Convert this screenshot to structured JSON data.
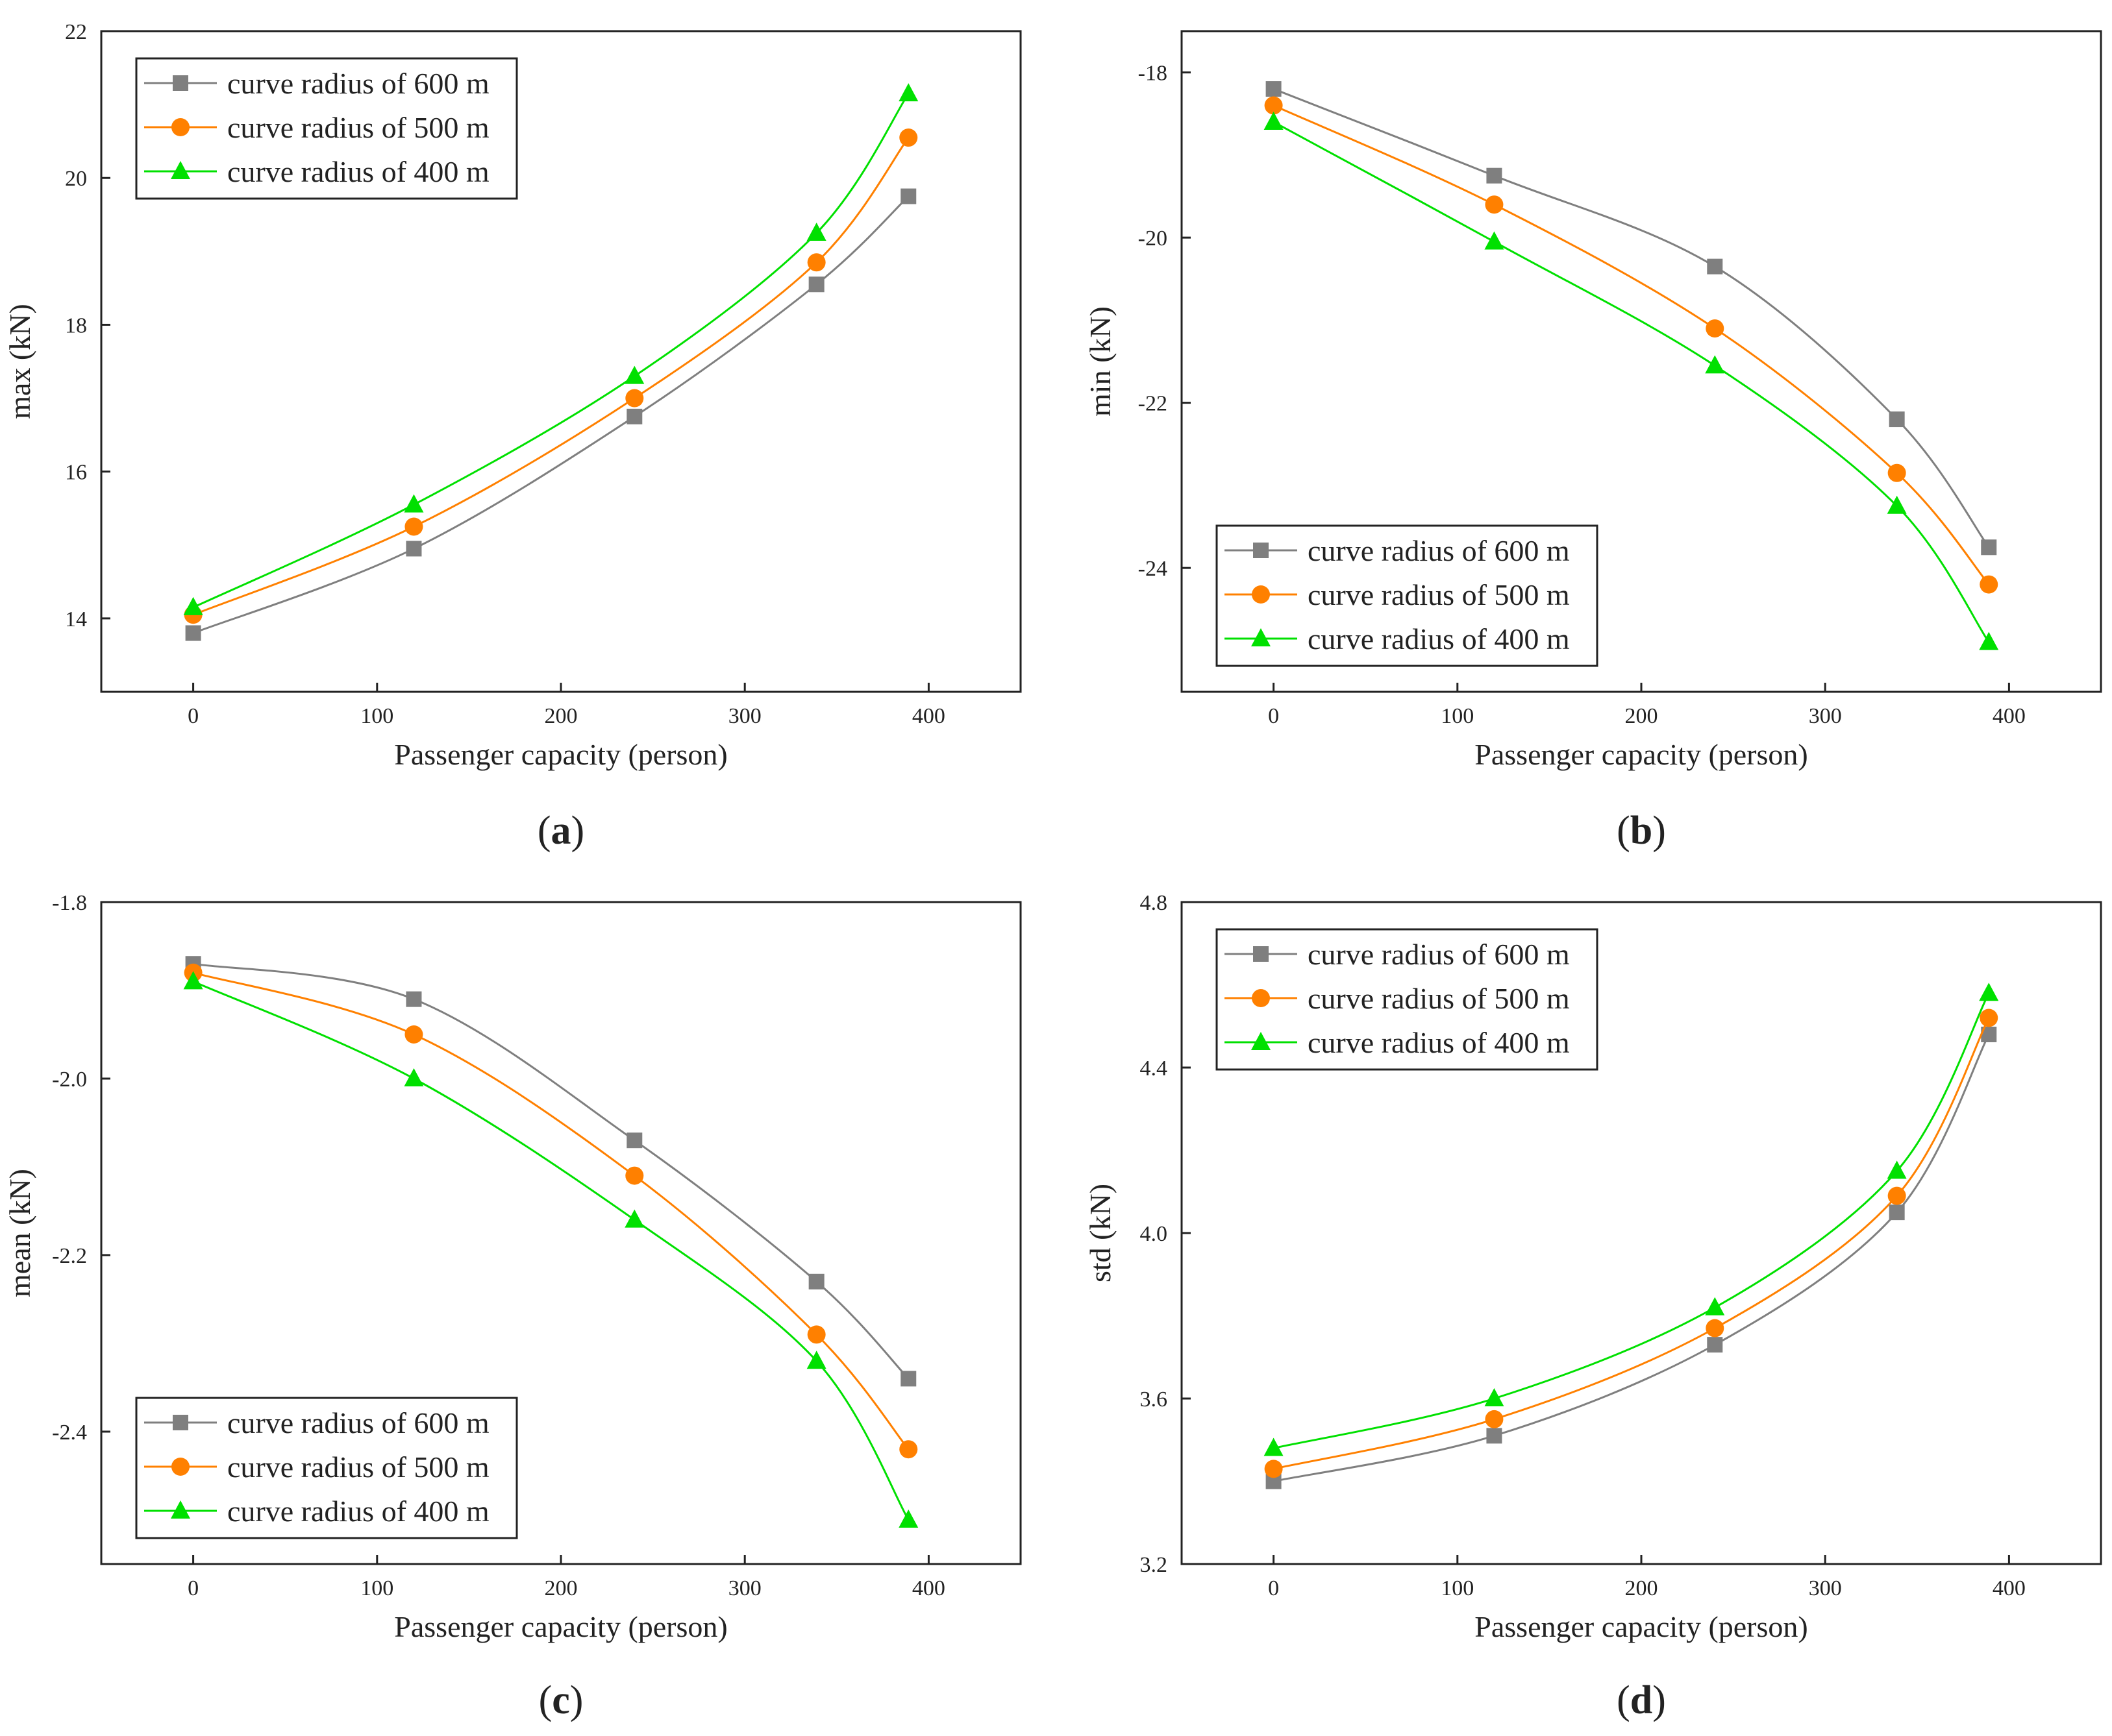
{
  "figure": {
    "panels": [
      {
        "caption": "(a)",
        "letter": "a",
        "legend_position": "top-left",
        "chart_data": {
          "type": "line",
          "title": "",
          "xlabel": "Passenger capacity (person)",
          "ylabel": "max (kN)",
          "xlim": [
            -50,
            450
          ],
          "ylim": [
            13,
            22
          ],
          "xticks": [
            0,
            100,
            200,
            300,
            400
          ],
          "yticks": [
            14,
            16,
            18,
            20,
            22
          ],
          "ytick_labels": [
            "14",
            "16",
            "18",
            "20",
            "22"
          ],
          "x": [
            0,
            120,
            240,
            339,
            389
          ],
          "series": [
            {
              "name": "curve radius of 600 m",
              "marker": "square",
              "color": "#7f7f7f",
              "values": [
                13.8,
                14.95,
                16.75,
                18.55,
                19.75
              ]
            },
            {
              "name": "curve radius of 500 m",
              "marker": "circle",
              "color": "#ff8000",
              "values": [
                14.05,
                15.25,
                17.0,
                18.85,
                20.55
              ]
            },
            {
              "name": "curve radius of 400 m",
              "marker": "triangle",
              "color": "#00e000",
              "values": [
                14.15,
                15.55,
                17.3,
                19.25,
                21.15
              ]
            }
          ]
        }
      },
      {
        "caption": "(b)",
        "letter": "b",
        "legend_position": "bottom-left",
        "chart_data": {
          "type": "line",
          "title": "",
          "xlabel": "Passenger capacity (person)",
          "ylabel": "min (kN)",
          "xlim": [
            -50,
            450
          ],
          "ylim": [
            -25.5,
            -17.5
          ],
          "xticks": [
            0,
            100,
            200,
            300,
            400
          ],
          "yticks": [
            -24,
            -22,
            -20,
            -18
          ],
          "ytick_labels": [
            "-24",
            "-22",
            "-20",
            "-18"
          ],
          "x": [
            0,
            120,
            240,
            339,
            389
          ],
          "series": [
            {
              "name": "curve radius of 600 m",
              "marker": "square",
              "color": "#7f7f7f",
              "values": [
                -18.2,
                -19.25,
                -20.35,
                -22.2,
                -23.75
              ]
            },
            {
              "name": "curve radius of 500 m",
              "marker": "circle",
              "color": "#ff8000",
              "values": [
                -18.4,
                -19.6,
                -21.1,
                -22.85,
                -24.2
              ]
            },
            {
              "name": "curve radius of 400 m",
              "marker": "triangle",
              "color": "#00e000",
              "values": [
                -18.6,
                -20.05,
                -21.55,
                -23.25,
                -24.9
              ]
            }
          ]
        }
      },
      {
        "caption": "(c)",
        "letter": "c",
        "legend_position": "bottom-left",
        "chart_data": {
          "type": "line",
          "title": "",
          "xlabel": "Passenger capacity (person)",
          "ylabel": "mean (kN)",
          "xlim": [
            -50,
            450
          ],
          "ylim": [
            -2.55,
            -1.8
          ],
          "xticks": [
            0,
            100,
            200,
            300,
            400
          ],
          "yticks": [
            -2.4,
            -2.2,
            -2.0,
            -1.8
          ],
          "ytick_labels": [
            "-2.4",
            "-2.2",
            "-2.0",
            "-1.8"
          ],
          "x": [
            0,
            120,
            240,
            339,
            389
          ],
          "series": [
            {
              "name": "curve radius of 600 m",
              "marker": "square",
              "color": "#7f7f7f",
              "values": [
                -1.87,
                -1.91,
                -2.07,
                -2.23,
                -2.34
              ]
            },
            {
              "name": "curve radius of 500 m",
              "marker": "circle",
              "color": "#ff8000",
              "values": [
                -1.88,
                -1.95,
                -2.11,
                -2.29,
                -2.42
              ]
            },
            {
              "name": "curve radius of 400 m",
              "marker": "triangle",
              "color": "#00e000",
              "values": [
                -1.89,
                -2.0,
                -2.16,
                -2.32,
                -2.5
              ]
            }
          ]
        }
      },
      {
        "caption": "(d)",
        "letter": "d",
        "legend_position": "top-left",
        "chart_data": {
          "type": "line",
          "title": "",
          "xlabel": "Passenger capacity (person)",
          "ylabel": "std (kN)",
          "xlim": [
            -50,
            450
          ],
          "ylim": [
            3.2,
            4.8
          ],
          "xticks": [
            0,
            100,
            200,
            300,
            400
          ],
          "yticks": [
            3.2,
            3.6,
            4.0,
            4.4,
            4.8
          ],
          "ytick_labels": [
            "3.2",
            "3.6",
            "4.0",
            "4.4",
            "4.8"
          ],
          "x": [
            0,
            120,
            240,
            339,
            389
          ],
          "series": [
            {
              "name": "curve radius of 600 m",
              "marker": "square",
              "color": "#7f7f7f",
              "values": [
                3.4,
                3.51,
                3.73,
                4.05,
                4.48
              ]
            },
            {
              "name": "curve radius of 500 m",
              "marker": "circle",
              "color": "#ff8000",
              "values": [
                3.43,
                3.55,
                3.77,
                4.09,
                4.52
              ]
            },
            {
              "name": "curve radius of 400 m",
              "marker": "triangle",
              "color": "#00e000",
              "values": [
                3.48,
                3.6,
                3.82,
                4.15,
                4.58
              ]
            }
          ]
        }
      }
    ]
  }
}
